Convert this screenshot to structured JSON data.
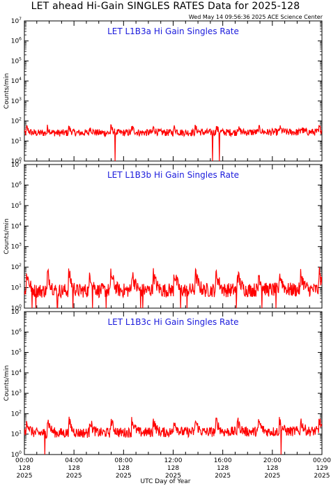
{
  "header": {
    "title": "LET ahead Hi-Gain SINGLES RATES Data for 2025-128",
    "timestamp": "Wed May 14 09:56:36 2025 ACE Science Center"
  },
  "chart_data": {
    "type": "line",
    "xlabel": "UTC Day of Year",
    "x_range_hours": [
      0,
      24
    ],
    "x_ticks": [
      {
        "hour": 0,
        "time": "00:00",
        "day": "128",
        "year": "2025"
      },
      {
        "hour": 4,
        "time": "04:00",
        "day": "128",
        "year": "2025"
      },
      {
        "hour": 8,
        "time": "08:00",
        "day": "128",
        "year": "2025"
      },
      {
        "hour": 12,
        "time": "12:00",
        "day": "128",
        "year": "2025"
      },
      {
        "hour": 16,
        "time": "16:00",
        "day": "128",
        "year": "2025"
      },
      {
        "hour": 20,
        "time": "20:00",
        "day": "128",
        "year": "2025"
      },
      {
        "hour": 24,
        "time": "00:00",
        "day": "129",
        "year": "2025"
      }
    ],
    "y_scale": "log",
    "ylim": [
      1,
      10000000
    ],
    "line_color": "#ff0000",
    "panels": [
      {
        "title": "LET L1B3a Hi Gain Singles Rate",
        "ylabel": "Counts/min",
        "baseline": 25,
        "jitter": 0.18,
        "spike_peak": 45,
        "drift_end": 28,
        "dropouts": 3
      },
      {
        "title": "LET L1B3b Hi Gain Singles Rate",
        "ylabel": "Counts/min",
        "baseline": 7,
        "jitter": 0.35,
        "spike_peak": 45,
        "drift_end": 8,
        "dropouts": 14
      },
      {
        "title": "LET L1B3c Hi Gain Singles Rate",
        "ylabel": "Counts/min",
        "baseline": 11,
        "jitter": 0.25,
        "spike_peak": 45,
        "drift_end": 14,
        "dropouts": 2
      }
    ],
    "spike_hours": [
      0.2,
      1.9,
      3.6,
      5.3,
      7.0,
      8.7,
      10.4,
      12.1,
      13.8,
      15.5,
      17.2,
      18.9,
      20.6,
      22.3,
      23.8
    ]
  }
}
